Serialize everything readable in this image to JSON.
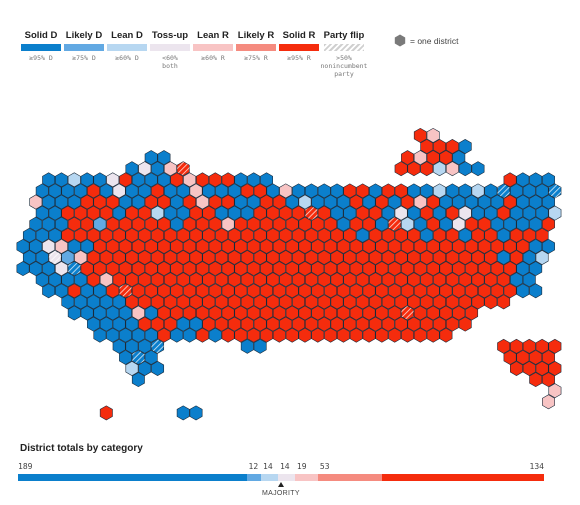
{
  "legend": [
    {
      "key": "solid_d",
      "label": "Solid D",
      "sub": "≥95% D",
      "color": "#0b7fcc"
    },
    {
      "key": "likely_d",
      "label": "Likely D",
      "sub": "≥75% D",
      "color": "#62a9e3"
    },
    {
      "key": "lean_d",
      "label": "Lean D",
      "sub": "≥60% D",
      "color": "#b7d7f1"
    },
    {
      "key": "toss_up",
      "label": "Toss-up",
      "sub": "<60%\nboth",
      "color": "#ece5ee"
    },
    {
      "key": "lean_r",
      "label": "Lean R",
      "sub": "≥60% R",
      "color": "#f8c4c4"
    },
    {
      "key": "likely_r",
      "label": "Likely R",
      "sub": "≥75% R",
      "color": "#f58b7f"
    },
    {
      "key": "solid_r",
      "label": "Solid R",
      "sub": "≥95% R",
      "color": "#f52c0d"
    }
  ],
  "party_flip": {
    "label": "Party flip",
    "sub": ">50%\nnonincumbent\nparty"
  },
  "hex_key": {
    "label": "= one district",
    "color": "#7a7a7a"
  },
  "totals": {
    "title": "District totals by category",
    "majority_label": "MAJORITY",
    "segments": [
      {
        "category": "solid_d",
        "value": 189,
        "color": "#0b7fcc"
      },
      {
        "category": "likely_d",
        "value": 12,
        "color": "#62a9e3"
      },
      {
        "category": "lean_d",
        "value": 14,
        "color": "#b7d7f1"
      },
      {
        "category": "toss_up",
        "value": 14,
        "color": "#ece5ee"
      },
      {
        "category": "lean_r",
        "value": 19,
        "color": "#f8c4c4"
      },
      {
        "category": "likely_r",
        "value": 53,
        "color": "#f58b7f"
      },
      {
        "category": "solid_r",
        "value": 134,
        "color": "#f52c0d"
      }
    ]
  }
}
